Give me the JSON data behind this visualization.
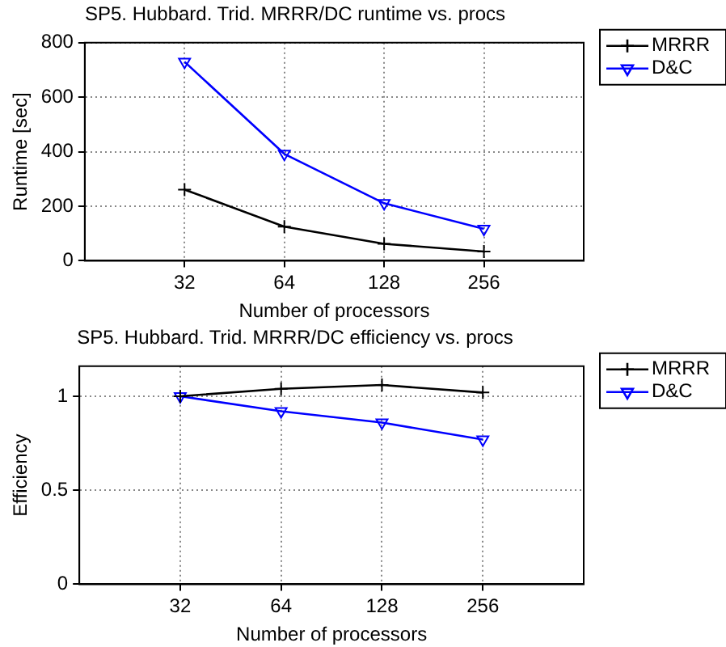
{
  "chart_data": [
    {
      "type": "line",
      "title": "SP5. Hubbard. Trid. MRRR/DC runtime vs. procs",
      "xlabel": "Number of processors",
      "ylabel": "Runtime [sec]",
      "x": [
        32,
        64,
        128,
        256
      ],
      "log": "x",
      "xlim": [
        16,
        512
      ],
      "xticks": [
        32,
        64,
        128,
        256
      ],
      "ylim": [
        0,
        800
      ],
      "yticks": [
        0,
        200,
        400,
        600,
        800
      ],
      "grid": true,
      "legend": "top right",
      "series": [
        {
          "name": "MRRR",
          "color": "#000000",
          "marker": "cross",
          "values": [
            261,
            125,
            62,
            34
          ]
        },
        {
          "name": "D&C",
          "color": "#0000ff",
          "marker": "triangle",
          "values": [
            730,
            392,
            211,
            117
          ]
        }
      ]
    },
    {
      "type": "line",
      "title": "SP5. Hubbard. Trid. MRRR/DC efficiency vs. procs",
      "xlabel": "Number of processors",
      "ylabel": "Efficiency",
      "x": [
        32,
        64,
        128,
        256
      ],
      "log": "x",
      "xlim": [
        16,
        512
      ],
      "xticks": [
        32,
        64,
        128,
        256
      ],
      "ylim": [
        0,
        1.16
      ],
      "yticks": [
        0,
        0.5,
        1
      ],
      "grid": true,
      "legend": "top right",
      "series": [
        {
          "name": "MRRR",
          "color": "#000000",
          "marker": "cross",
          "values": [
            1.0,
            1.04,
            1.06,
            1.02
          ]
        },
        {
          "name": "D&C",
          "color": "#0000ff",
          "marker": "triangle",
          "values": [
            1.0,
            0.92,
            0.86,
            0.77
          ]
        }
      ]
    }
  ]
}
